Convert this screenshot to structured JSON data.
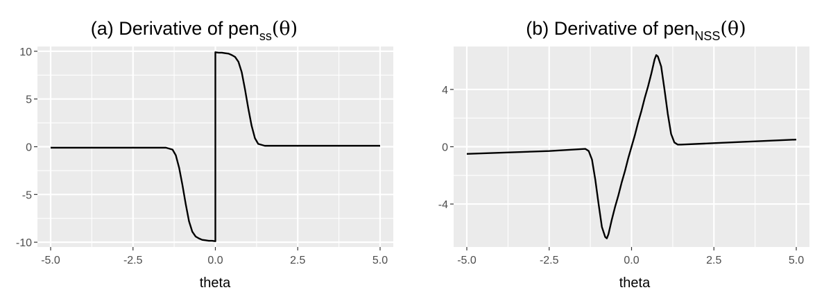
{
  "chart_data": [
    {
      "type": "line",
      "title": {
        "prefix": "(a) Derivative of pen",
        "subscript": "ss",
        "argument": "(θ)"
      },
      "xlabel": "theta",
      "ylabel": "",
      "xlim": [
        -5.4,
        5.4
      ],
      "ylim": [
        -10.5,
        10.5
      ],
      "xticks": [
        -5.0,
        -2.5,
        0.0,
        2.5,
        5.0
      ],
      "xtick_labels": [
        "-5.0",
        "-2.5",
        "0.0",
        "2.5",
        "5.0"
      ],
      "yticks": [
        -10,
        -5,
        0,
        5,
        10
      ],
      "ytick_labels": [
        "-10",
        "-5",
        "0",
        "5",
        "10"
      ],
      "grid": true,
      "background": "#ebebeb",
      "gridline_color": "#ffffff",
      "line_color": "#000000",
      "series": [
        {
          "x": [
            -5.0,
            -2.5,
            -1.5,
            -1.3,
            -1.2,
            -1.1,
            -1.0,
            -0.9,
            -0.8,
            -0.7,
            -0.6,
            -0.5,
            -0.4,
            -0.3,
            -0.2,
            -0.1,
            0.0,
            0.0,
            0.1,
            0.2,
            0.3,
            0.4,
            0.5,
            0.6,
            0.7,
            0.8,
            0.9,
            1.0,
            1.1,
            1.2,
            1.3,
            1.5,
            2.5,
            5.0
          ],
          "y": [
            -0.1,
            -0.1,
            -0.1,
            -0.3,
            -0.9,
            -2.2,
            -4.0,
            -6.0,
            -7.8,
            -8.9,
            -9.4,
            -9.6,
            -9.75,
            -9.8,
            -9.85,
            -9.85,
            -9.9,
            9.9,
            9.85,
            9.85,
            9.8,
            9.75,
            9.6,
            9.4,
            8.9,
            7.8,
            6.0,
            4.0,
            2.2,
            0.9,
            0.3,
            0.1,
            0.1,
            0.1
          ]
        }
      ]
    },
    {
      "type": "line",
      "title": {
        "prefix": "(b) Derivative of pen",
        "subscript": "NSS",
        "argument": "(θ)"
      },
      "xlabel": "theta",
      "ylabel": "",
      "xlim": [
        -5.4,
        5.4
      ],
      "ylim": [
        -7.0,
        7.0
      ],
      "xticks": [
        -5.0,
        -2.5,
        0.0,
        2.5,
        5.0
      ],
      "xtick_labels": [
        "-5.0",
        "-2.5",
        "0.0",
        "2.5",
        "5.0"
      ],
      "yticks": [
        -4,
        0,
        4
      ],
      "ytick_labels": [
        "-4",
        "0",
        "4"
      ],
      "grid": true,
      "background": "#ebebeb",
      "gridline_color": "#ffffff",
      "line_color": "#000000",
      "series": [
        {
          "x": [
            -5.0,
            -2.5,
            -1.4,
            -1.3,
            -1.2,
            -1.1,
            -1.0,
            -0.9,
            -0.8,
            -0.75,
            -0.7,
            -0.6,
            -0.5,
            -0.4,
            -0.3,
            -0.2,
            -0.1,
            0.0,
            0.1,
            0.2,
            0.3,
            0.4,
            0.5,
            0.6,
            0.7,
            0.75,
            0.8,
            0.9,
            1.0,
            1.1,
            1.2,
            1.3,
            1.4,
            1.5,
            2.5,
            5.0
          ],
          "y": [
            -0.5,
            -0.3,
            -0.15,
            -0.3,
            -0.9,
            -2.3,
            -4.0,
            -5.6,
            -6.3,
            -6.4,
            -6.1,
            -5.1,
            -4.2,
            -3.4,
            -2.5,
            -1.7,
            -0.8,
            0.0,
            0.8,
            1.7,
            2.5,
            3.4,
            4.2,
            5.1,
            6.1,
            6.4,
            6.3,
            5.6,
            4.0,
            2.3,
            0.9,
            0.3,
            0.15,
            0.15,
            0.25,
            0.5
          ]
        }
      ]
    }
  ]
}
